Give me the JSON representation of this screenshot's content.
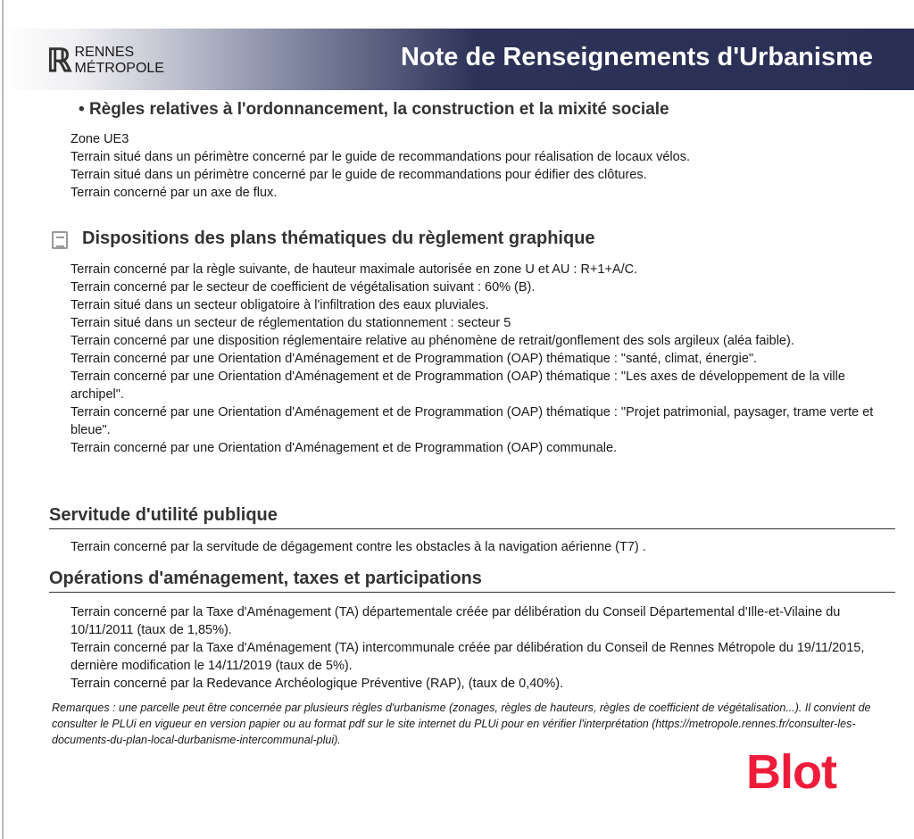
{
  "header": {
    "logo_line1": "RENNES",
    "logo_line2": "MÉTROPOLE",
    "title": "Note de Renseignements d'Urbanisme"
  },
  "rules": {
    "heading": "Règles relatives à l'ordonnancement, la construction et la mixité sociale",
    "lines": [
      "Zone UE3",
      "Terrain situé dans un périmètre concerné par le guide de recommandations pour réalisation de locaux vélos.",
      "Terrain situé dans un périmètre concerné par le guide de recommandations pour édifier des clôtures.",
      "Terrain concerné par un axe de flux."
    ]
  },
  "dispositions": {
    "heading": "Dispositions des plans thématiques du règlement graphique",
    "lines": [
      "Terrain concerné par la règle suivante, de hauteur maximale autorisée en zone U et AU : R+1+A/C.",
      "Terrain concerné par le secteur de coefficient de végétalisation suivant : 60% (B).",
      "Terrain situé dans un secteur obligatoire à l'infiltration des eaux pluviales.",
      "Terrain situé dans un secteur de réglementation du stationnement : secteur 5",
      "Terrain concerné par une disposition réglementaire relative au phénomène de retrait/gonflement des sols argileux (aléa faible).",
      "Terrain concerné par une Orientation d'Aménagement et de Programmation (OAP) thématique : \"santé, climat, énergie\".",
      "Terrain concerné par une Orientation d'Aménagement et de Programmation (OAP) thématique : \"Les axes de développement de la ville archipel\".",
      "Terrain concerné par une Orientation d'Aménagement et de Programmation (OAP) thématique : \"Projet patrimonial, paysager, trame verte et bleue\".",
      "Terrain concerné par une Orientation d'Aménagement et de Programmation (OAP) communale."
    ]
  },
  "servitude": {
    "heading": "Servitude d'utilité publique",
    "lines": [
      "Terrain concerné par la servitude de dégagement contre les obstacles à la navigation aérienne (T7) ."
    ]
  },
  "operations": {
    "heading": "Opérations d'aménagement, taxes et participations",
    "lines": [
      "Terrain concerné par la Taxe d'Aménagement (TA) départementale créée par délibération du Conseil Départemental d'Ille-et-Vilaine du 10/11/2011 (taux de 1,85%).",
      "Terrain concerné par la Taxe d'Aménagement (TA) intercommunale créée par délibération du Conseil de Rennes Métropole du 19/11/2015, dernière modification le 14/11/2019 (taux de 5%).",
      "Terrain concerné par la Redevance Archéologique Préventive (RAP), (taux de 0,40%)."
    ]
  },
  "remarks": "Remarques : une parcelle peut être concernée par plusieurs règles d'urbanisme (zonages, règles de hauteurs, règles de coefficient de végétalisation...). Il convient de consulter le PLUi en vigueur en version papier ou au format pdf sur le site internet du PLUi pour en vérifier l'interprétation (https://metropole.rennes.fr/consulter-les-documents-du-plan-local-durbanisme-intercommunal-plui).",
  "watermark": "Blot",
  "colors": {
    "banner": "#2a2f55",
    "watermark": "#ee1c3a"
  }
}
